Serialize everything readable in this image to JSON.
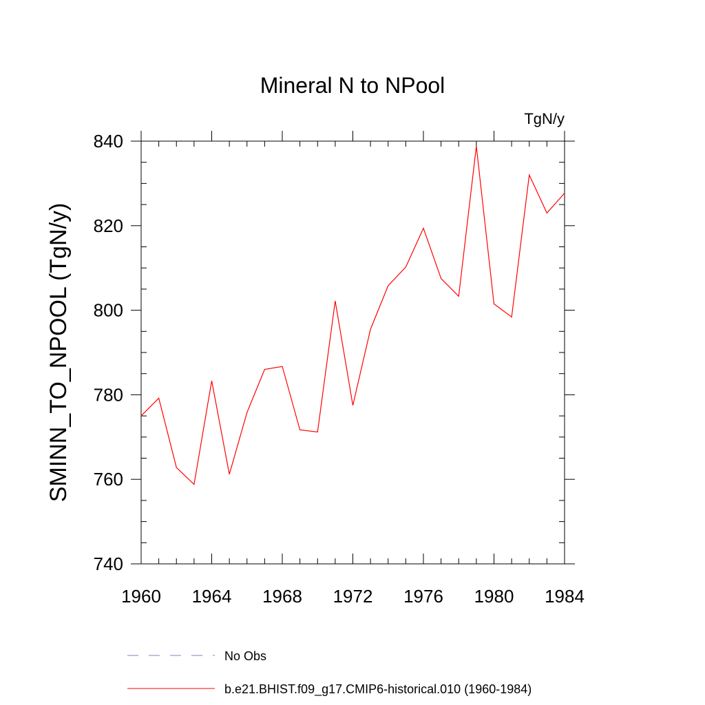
{
  "chart_data": {
    "type": "line",
    "title": "Mineral N to NPool",
    "units_label": "TgN/y",
    "ylabel": "SMINN_TO_NPOOL  (TgN/y)",
    "xlabel": "",
    "xlim": [
      1960,
      1984
    ],
    "ylim": [
      740,
      840
    ],
    "xticks": [
      1960,
      1964,
      1968,
      1972,
      1976,
      1980,
      1984
    ],
    "yticks": [
      740,
      760,
      780,
      800,
      820,
      840
    ],
    "x_minor_step": 1,
    "y_minor_step": 5,
    "grid": false,
    "legend_position": "bottom",
    "x": [
      1960,
      1961,
      1962,
      1963,
      1964,
      1965,
      1966,
      1967,
      1968,
      1969,
      1970,
      1971,
      1972,
      1973,
      1974,
      1975,
      1976,
      1977,
      1978,
      1979,
      1980,
      1981,
      1982,
      1983,
      1984
    ],
    "series": [
      {
        "name": "b.e21.BHIST.f09_g17.CMIP6-historical.010 (1960-1984)",
        "color": "#ff0000",
        "dash": "solid",
        "values": [
          775.0,
          779.2,
          762.8,
          758.8,
          783.3,
          761.2,
          775.8,
          786.0,
          786.7,
          771.7,
          771.2,
          802.2,
          777.5,
          795.5,
          805.8,
          810.2,
          819.4,
          807.5,
          803.3,
          838.8,
          801.5,
          798.4,
          832.0,
          823.0,
          827.7
        ]
      }
    ],
    "legend": [
      {
        "label": "No Obs",
        "color": "#8080c0",
        "dash": "dashed"
      },
      {
        "label": "b.e21.BHIST.f09_g17.CMIP6-historical.010 (1960-1984)",
        "color": "#ff0000",
        "dash": "solid"
      }
    ]
  }
}
